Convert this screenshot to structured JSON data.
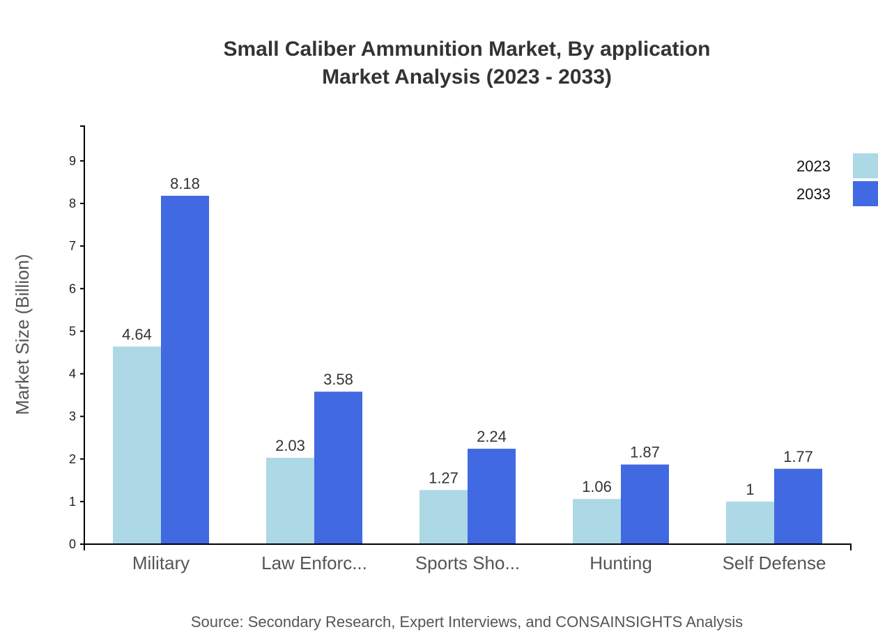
{
  "chart_data": {
    "type": "bar",
    "title": [
      "Small Caliber Ammunition Market, By application",
      "Market Analysis (2023 - 2033)"
    ],
    "xlabel": "",
    "ylabel": "Market Size (Billion)",
    "categories": [
      "Military",
      "Law Enforc...",
      "Sports Sho...",
      "Hunting",
      "Self Defense"
    ],
    "series": [
      {
        "name": "2023",
        "color": "#ADD8E6",
        "values": [
          4.64,
          2.03,
          1.27,
          1.06,
          1
        ]
      },
      {
        "name": "2033",
        "color": "#4169E1",
        "values": [
          8.18,
          3.58,
          2.24,
          1.87,
          1.77
        ]
      }
    ],
    "ylim": [
      0,
      9.816
    ],
    "yticks": [
      0,
      1,
      2,
      3,
      4,
      5,
      6,
      7,
      8,
      9
    ],
    "grid": false,
    "legend": "top-right",
    "source": "Source: Secondary Research, Expert Interviews, and CONSAINSIGHTS Analysis"
  }
}
